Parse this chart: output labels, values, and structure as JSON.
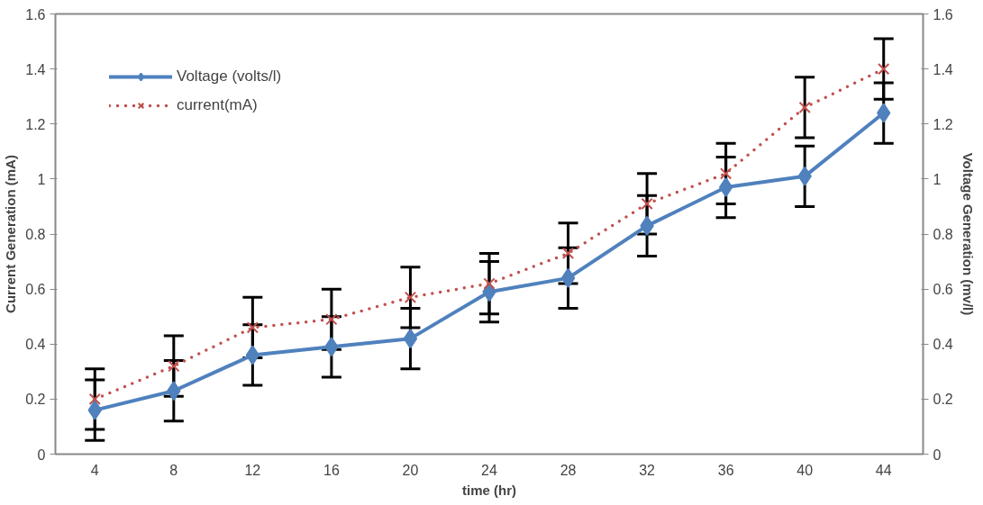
{
  "chart_data": {
    "type": "line",
    "xlabel": "time (hr)",
    "ylabel": "Current Generation (mA)",
    "y2label": "Voltage Generation (mv/l)",
    "categories": [
      "4",
      "8",
      "12",
      "16",
      "20",
      "24",
      "28",
      "32",
      "36",
      "40",
      "44"
    ],
    "ylim": [
      0,
      1.6
    ],
    "yticks": [
      0,
      0.2,
      0.4,
      0.6,
      0.8,
      {
        "value": 1,
        "label": "1"
      },
      1.2,
      1.4,
      1.6
    ],
    "y2lim": [
      0,
      1.6
    ],
    "y2ticks": [
      0,
      0.2,
      0.4,
      0.6,
      0.8,
      {
        "value": 1,
        "label": "1"
      },
      1.2,
      1.4,
      1.6
    ],
    "grid": false,
    "legend": "top left",
    "series": [
      {
        "name": "Voltage (volts/l)",
        "color": "#4f81bd",
        "marker": "diamond",
        "line_style": "solid",
        "values": [
          0.16,
          0.23,
          0.36,
          0.39,
          0.42,
          0.59,
          0.64,
          0.83,
          0.97,
          1.01,
          1.24
        ],
        "errors": [
          0.11,
          0.11,
          0.11,
          0.11,
          0.11,
          0.11,
          0.11,
          0.11,
          0.11,
          0.11,
          0.11
        ]
      },
      {
        "name": "current(mA)",
        "color": "#c0504d",
        "marker": "cross",
        "line_style": "dotted",
        "values": [
          0.2,
          0.32,
          0.46,
          0.49,
          0.57,
          0.62,
          0.73,
          0.91,
          1.02,
          1.26,
          1.4
        ],
        "errors": [
          0.11,
          0.11,
          0.11,
          0.11,
          0.11,
          0.11,
          0.11,
          0.11,
          0.11,
          0.11,
          0.11
        ]
      }
    ]
  }
}
